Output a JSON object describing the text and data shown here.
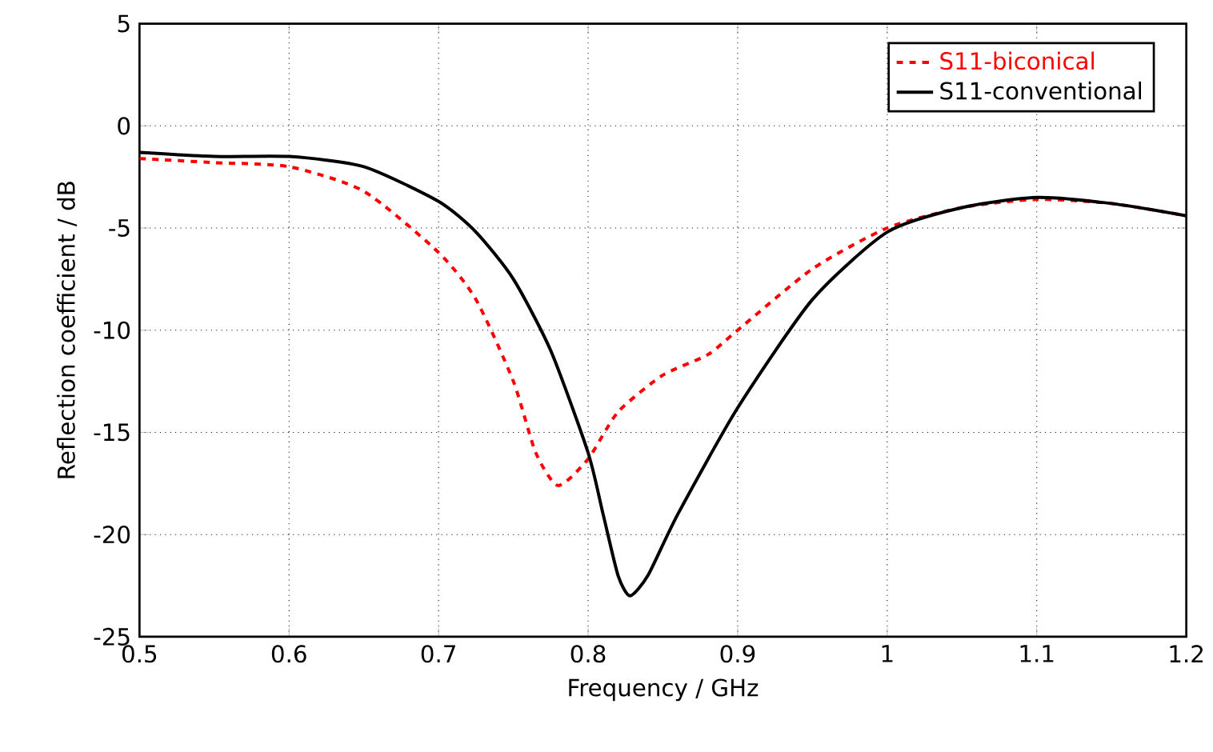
{
  "chart_data": {
    "type": "line",
    "xlabel": "Frequency / GHz",
    "ylabel": "Reflection coefficient / dB",
    "xlim": [
      0.5,
      1.2
    ],
    "xticks": [
      0.5,
      0.6,
      0.7,
      0.8,
      0.9,
      1,
      1.1,
      1.2
    ],
    "ylim": [
      -25,
      5
    ],
    "yticks": [
      -25,
      -20,
      -15,
      -10,
      -5,
      0,
      5
    ],
    "grid": true,
    "legend": "top right",
    "series": [
      {
        "name": "S11-biconical",
        "color": "#ff0000",
        "line_style": "dashed",
        "x": [
          0.5,
          0.55,
          0.6,
          0.65,
          0.7,
          0.725,
          0.75,
          0.765,
          0.78,
          0.8,
          0.82,
          0.85,
          0.88,
          0.9,
          0.95,
          1.0,
          1.05,
          1.1,
          1.15,
          1.2
        ],
        "values": [
          -1.6,
          -1.8,
          -2.0,
          -3.2,
          -6.2,
          -8.5,
          -12.5,
          -16,
          -17.6,
          -16.3,
          -14,
          -12.2,
          -11.2,
          -10,
          -7,
          -5,
          -4,
          -3.6,
          -3.8,
          -4.4
        ]
      },
      {
        "name": "S11-conventional",
        "color": "#000000",
        "line_style": "solid",
        "x": [
          0.5,
          0.55,
          0.6,
          0.65,
          0.7,
          0.725,
          0.75,
          0.775,
          0.8,
          0.81,
          0.82,
          0.828,
          0.84,
          0.86,
          0.9,
          0.95,
          1.0,
          1.05,
          1.1,
          1.15,
          1.2
        ],
        "values": [
          -1.3,
          -1.5,
          -1.5,
          -2,
          -3.7,
          -5.2,
          -7.5,
          -11,
          -16,
          -19,
          -22,
          -23,
          -22,
          -19,
          -13.8,
          -8.5,
          -5.2,
          -4.0,
          -3.5,
          -3.8,
          -4.4
        ]
      }
    ]
  }
}
